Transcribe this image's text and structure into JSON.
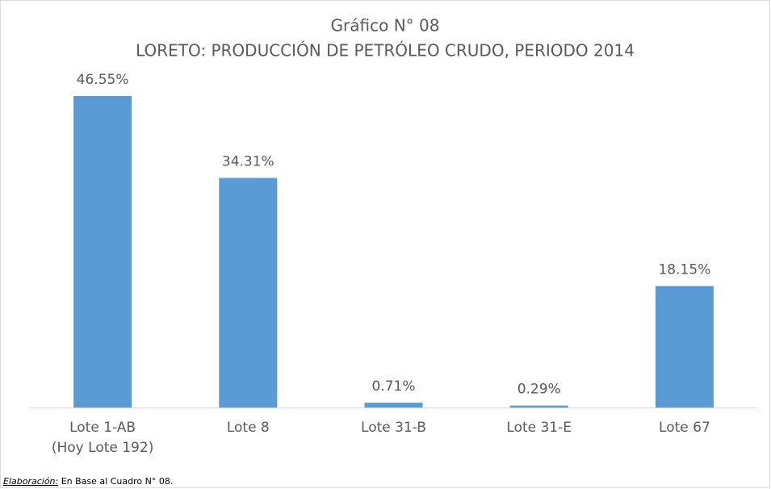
{
  "chart_data": {
    "type": "bar",
    "title": "Gráfico N° 08",
    "subtitle": "LORETO: PRODUCCIÓN DE PETRÓLEO CRUDO, PERIODO 2014",
    "categories": [
      "Lote 1-AB\n(Hoy Lote 192)",
      "Lote 8",
      "Lote 31-B",
      "Lote 31-E",
      "Lote 67"
    ],
    "values": [
      46.55,
      34.31,
      0.71,
      0.29,
      18.15
    ],
    "value_labels": [
      "46.55%",
      "34.31%",
      "0.71%",
      "0.29%",
      "18.15%"
    ],
    "color": "#5b9bd5",
    "source": {
      "label": "Elaboración:",
      "text": "En Base al Cuadro N° 08."
    }
  }
}
